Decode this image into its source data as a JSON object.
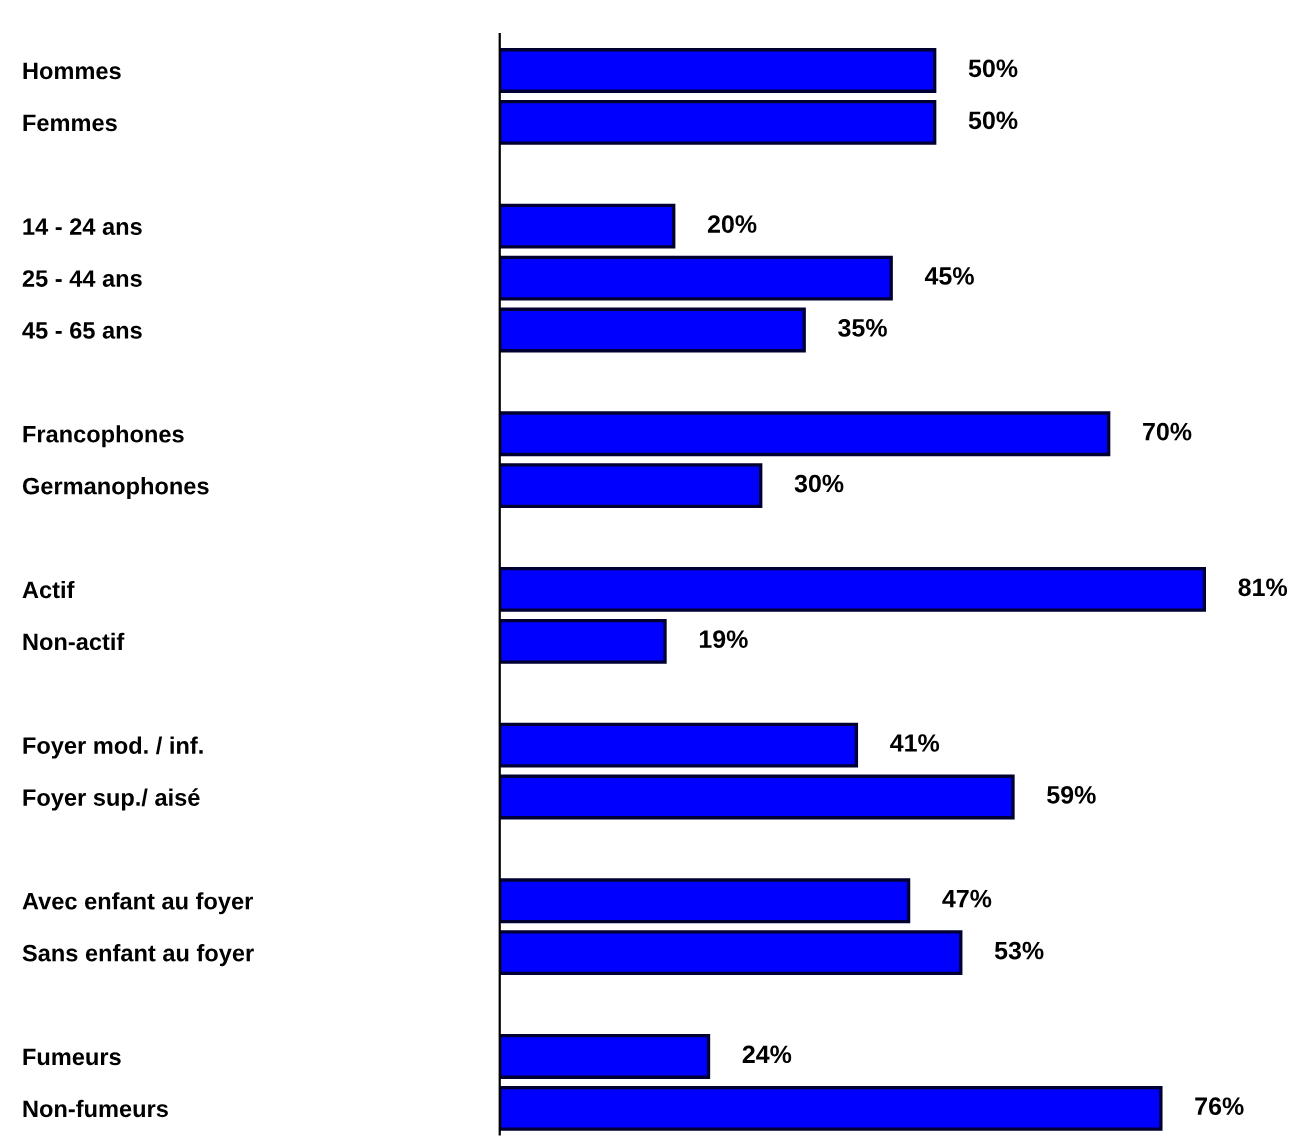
{
  "chart_data": {
    "type": "bar",
    "orientation": "horizontal",
    "categories": [
      "Hommes",
      "Femmes",
      null,
      "14 - 24 ans",
      "25 - 44 ans",
      "45 - 65 ans",
      null,
      "Francophones",
      "Germanophones",
      null,
      "Actif",
      "Non-actif",
      null,
      "Foyer mod. / inf.",
      "Foyer sup./ aisé",
      null,
      "Avec enfant au foyer",
      "Sans enfant au foyer",
      null,
      "Fumeurs",
      "Non-fumeurs"
    ],
    "values": [
      50,
      50,
      null,
      20,
      45,
      35,
      null,
      70,
      30,
      null,
      81,
      19,
      null,
      41,
      59,
      null,
      47,
      53,
      null,
      24,
      76
    ],
    "value_labels": [
      "50%",
      "50%",
      null,
      "20%",
      "45%",
      "35%",
      null,
      "70%",
      "30%",
      null,
      "81%",
      "19%",
      null,
      "41%",
      "59%",
      null,
      "47%",
      "53%",
      null,
      "24%",
      "76%"
    ],
    "color": "#0000ff",
    "grid": false,
    "legend": false
  }
}
